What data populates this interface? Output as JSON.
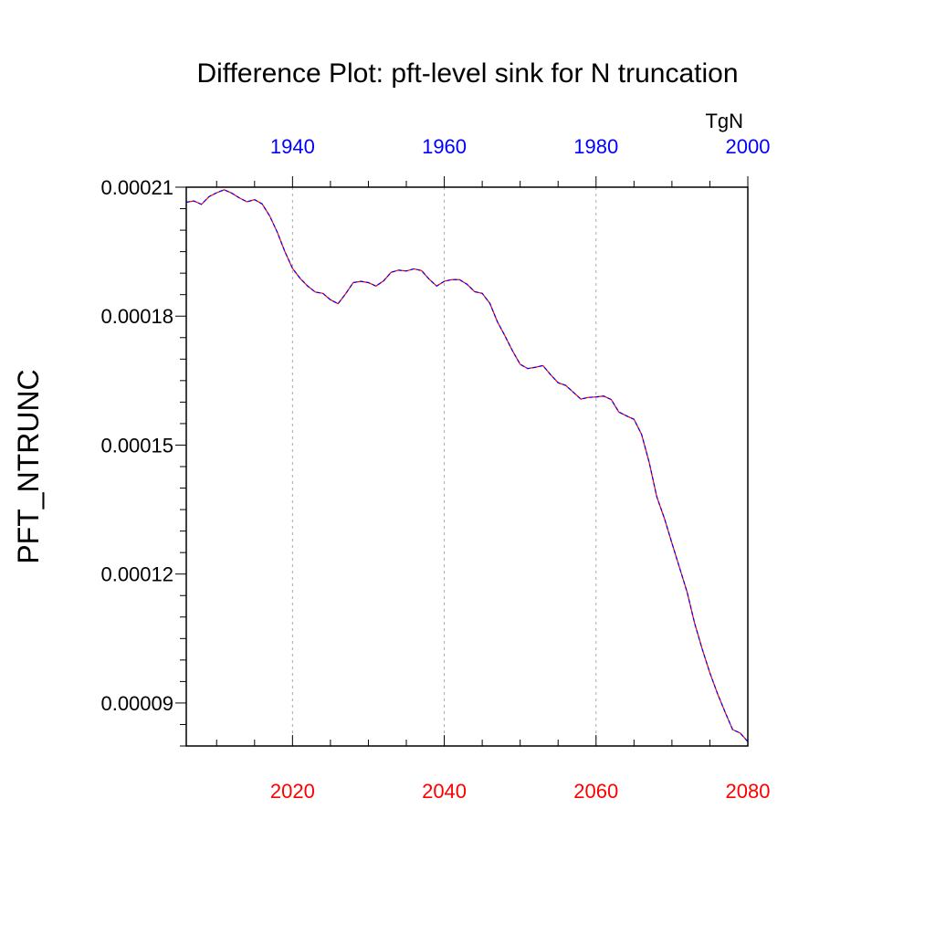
{
  "chart_data": {
    "type": "line",
    "title": "Difference Plot: pft-level sink for N truncation",
    "ylabel": "PFT_NTRUNC",
    "units": "TgN",
    "xlim": [
      2006,
      2080
    ],
    "ylim": [
      8e-05,
      0.00021
    ],
    "yticks": [
      "0.00009",
      "0.00012",
      "0.00015",
      "0.00018",
      "0.00021"
    ],
    "ytick_values": [
      9e-05,
      0.00012,
      0.00015,
      0.00018,
      0.00021
    ],
    "bottom_axis": {
      "ticks": [
        "2020",
        "2040",
        "2060",
        "2080"
      ],
      "values": [
        2020,
        2040,
        2060,
        2080
      ],
      "color": "#ff0000"
    },
    "top_axis": {
      "ticks": [
        "1940",
        "1960",
        "1980",
        "2000"
      ],
      "values": [
        1940,
        1960,
        1980,
        2000
      ],
      "color": "#0000ff",
      "offset_years": 80
    },
    "grid": {
      "vertical_at": [
        2020,
        2040,
        2060
      ],
      "style": "dotted"
    },
    "series": [
      {
        "color": "#ff0000",
        "style": "solid"
      },
      {
        "color": "#0000ff",
        "style": "dashed"
      }
    ],
    "x": [
      2006,
      2007,
      2008,
      2009,
      2010,
      2011,
      2012,
      2013,
      2014,
      2015,
      2016,
      2017,
      2018,
      2019,
      2020,
      2021,
      2022,
      2023,
      2024,
      2025,
      2026,
      2027,
      2028,
      2029,
      2030,
      2031,
      2032,
      2033,
      2034,
      2035,
      2036,
      2037,
      2038,
      2039,
      2040,
      2041,
      2042,
      2043,
      2044,
      2045,
      2046,
      2047,
      2048,
      2049,
      2050,
      2051,
      2052,
      2053,
      2054,
      2055,
      2056,
      2057,
      2058,
      2059,
      2060,
      2061,
      2062,
      2063,
      2064,
      2065,
      2066,
      2067,
      2068,
      2069,
      2070,
      2071,
      2072,
      2073,
      2074,
      2075,
      2076,
      2077,
      2078,
      2079,
      2080
    ],
    "values": [
      0.0002065,
      0.0002068,
      0.000206,
      0.0002078,
      0.0002087,
      0.0002094,
      0.0002086,
      0.0002075,
      0.0002066,
      0.0002071,
      0.0002061,
      0.0002033,
      0.0001995,
      0.000195,
      0.0001911,
      0.0001888,
      0.000187,
      0.0001856,
      0.0001853,
      0.0001838,
      0.0001829,
      0.0001852,
      0.0001878,
      0.0001881,
      0.0001878,
      0.000187,
      0.0001882,
      0.0001902,
      0.0001907,
      0.0001905,
      0.000191,
      0.0001906,
      0.0001886,
      0.000187,
      0.0001881,
      0.0001885,
      0.0001885,
      0.0001874,
      0.0001857,
      0.0001853,
      0.000183,
      0.0001787,
      0.0001754,
      0.0001719,
      0.0001688,
      0.0001678,
      0.0001681,
      0.0001685,
      0.0001664,
      0.0001645,
      0.0001639,
      0.0001623,
      0.0001607,
      0.0001611,
      0.0001612,
      0.0001614,
      0.0001606,
      0.0001577,
      0.0001568,
      0.000156,
      0.0001525,
      0.000146,
      0.000138,
      0.000133,
      0.0001272,
      0.0001215,
      0.0001158,
      0.0001085,
      0.0001025,
      9.7e-05,
      9.22e-05,
      8.79e-05,
      8.38e-05,
      8.3e-05,
      8.1e-05
    ]
  }
}
